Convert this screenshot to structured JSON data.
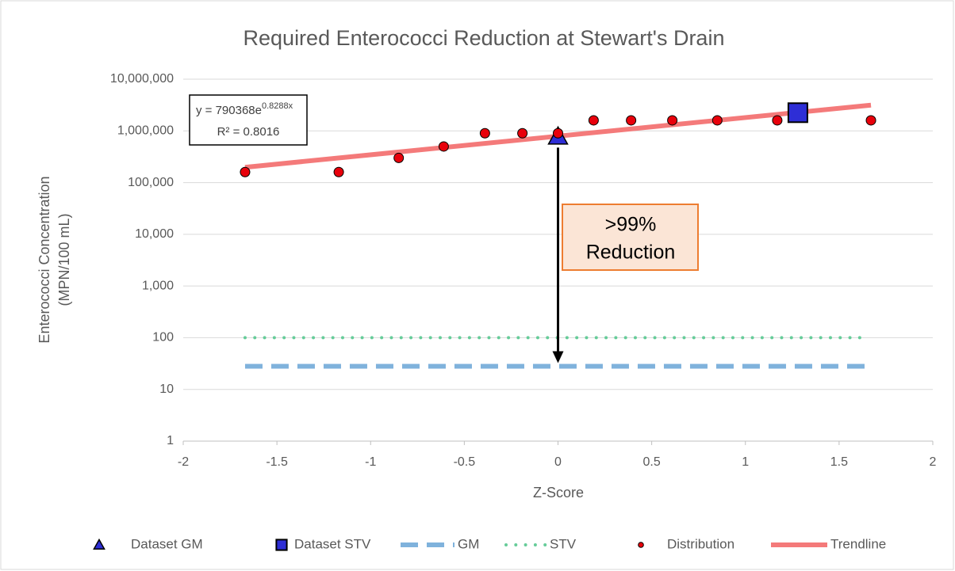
{
  "chart_data": {
    "type": "scatter",
    "title": "Required Enterococci Reduction at Stewart's Drain",
    "x_label": "Z-Score",
    "y_label": [
      "Enterococci Concentration",
      "(MPN/100 mL)"
    ],
    "xlim": [
      -2,
      2
    ],
    "xticks": [
      -2,
      -1.5,
      -1,
      -0.5,
      0,
      0.5,
      1,
      1.5,
      2
    ],
    "ylim": [
      1,
      10000000
    ],
    "log_y": true,
    "grid": true,
    "yticks": [
      1,
      10,
      100,
      {
        "value": 1000,
        "label": "1,000"
      },
      {
        "value": 10000,
        "label": "10,000"
      },
      {
        "value": 100000,
        "label": "100,000"
      },
      {
        "value": 1000000,
        "label": "1,000,000"
      },
      {
        "value": 10000000,
        "label": "10,000,000"
      }
    ],
    "legend": "bottom",
    "series": [
      {
        "name": "Dataset GM",
        "color": "#2e2ed6",
        "marker": "triangle",
        "x": [
          0
        ],
        "values": [
          780000
        ]
      },
      {
        "name": "Dataset STV",
        "color": "#2e2ed6",
        "marker": "square",
        "x": [
          1.28
        ],
        "values": [
          2250000
        ]
      },
      {
        "name": "GM",
        "color": "#7fb2dc",
        "line": "dashed",
        "x": [
          -1.67,
          1.67
        ],
        "values": [
          28,
          28
        ]
      },
      {
        "name": "STV",
        "color": "#66cc99",
        "line": "dotted",
        "x": [
          -1.67,
          1.64
        ],
        "values": [
          100,
          100
        ]
      },
      {
        "name": "Distribution",
        "color": "#e8000b",
        "marker": "circle",
        "x": [
          -1.67,
          -1.17,
          -0.85,
          -0.61,
          -0.39,
          -0.19,
          0,
          0.19,
          0.39,
          0.61,
          0.85,
          1.17,
          1.67
        ],
        "values": [
          160000,
          160000,
          300000,
          500000,
          900000,
          900000,
          900000,
          1600000,
          1600000,
          1600000,
          1600000,
          1600000,
          1600000
        ]
      },
      {
        "name": "Trendline",
        "color": "#f47a7a",
        "line": "solid",
        "x": [
          -1.67,
          1.67
        ],
        "values": [
          198000,
          3155000
        ]
      }
    ],
    "equation": {
      "base": "y = 790368e",
      "exponent": "0.8288x"
    },
    "r_squared": "R² = 0.8016",
    "annotation": [
      ">99%",
      "Reduction"
    ]
  }
}
